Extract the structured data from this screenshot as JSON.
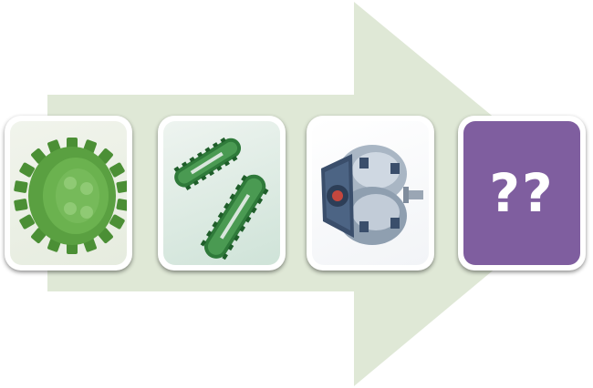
{
  "arrow": {
    "fill_color": "#dfe8d6"
  },
  "cards": [
    {
      "icon": "wheel-icon",
      "tint": "#4f9a3a"
    },
    {
      "icon": "tank-track-icon",
      "tint": "#3f8a46"
    },
    {
      "icon": "spherical-wheel-drive-icon",
      "tint": "#3e5575"
    },
    {
      "icon": "question-marks",
      "tint": "#7f5e9f",
      "label": "??"
    }
  ]
}
